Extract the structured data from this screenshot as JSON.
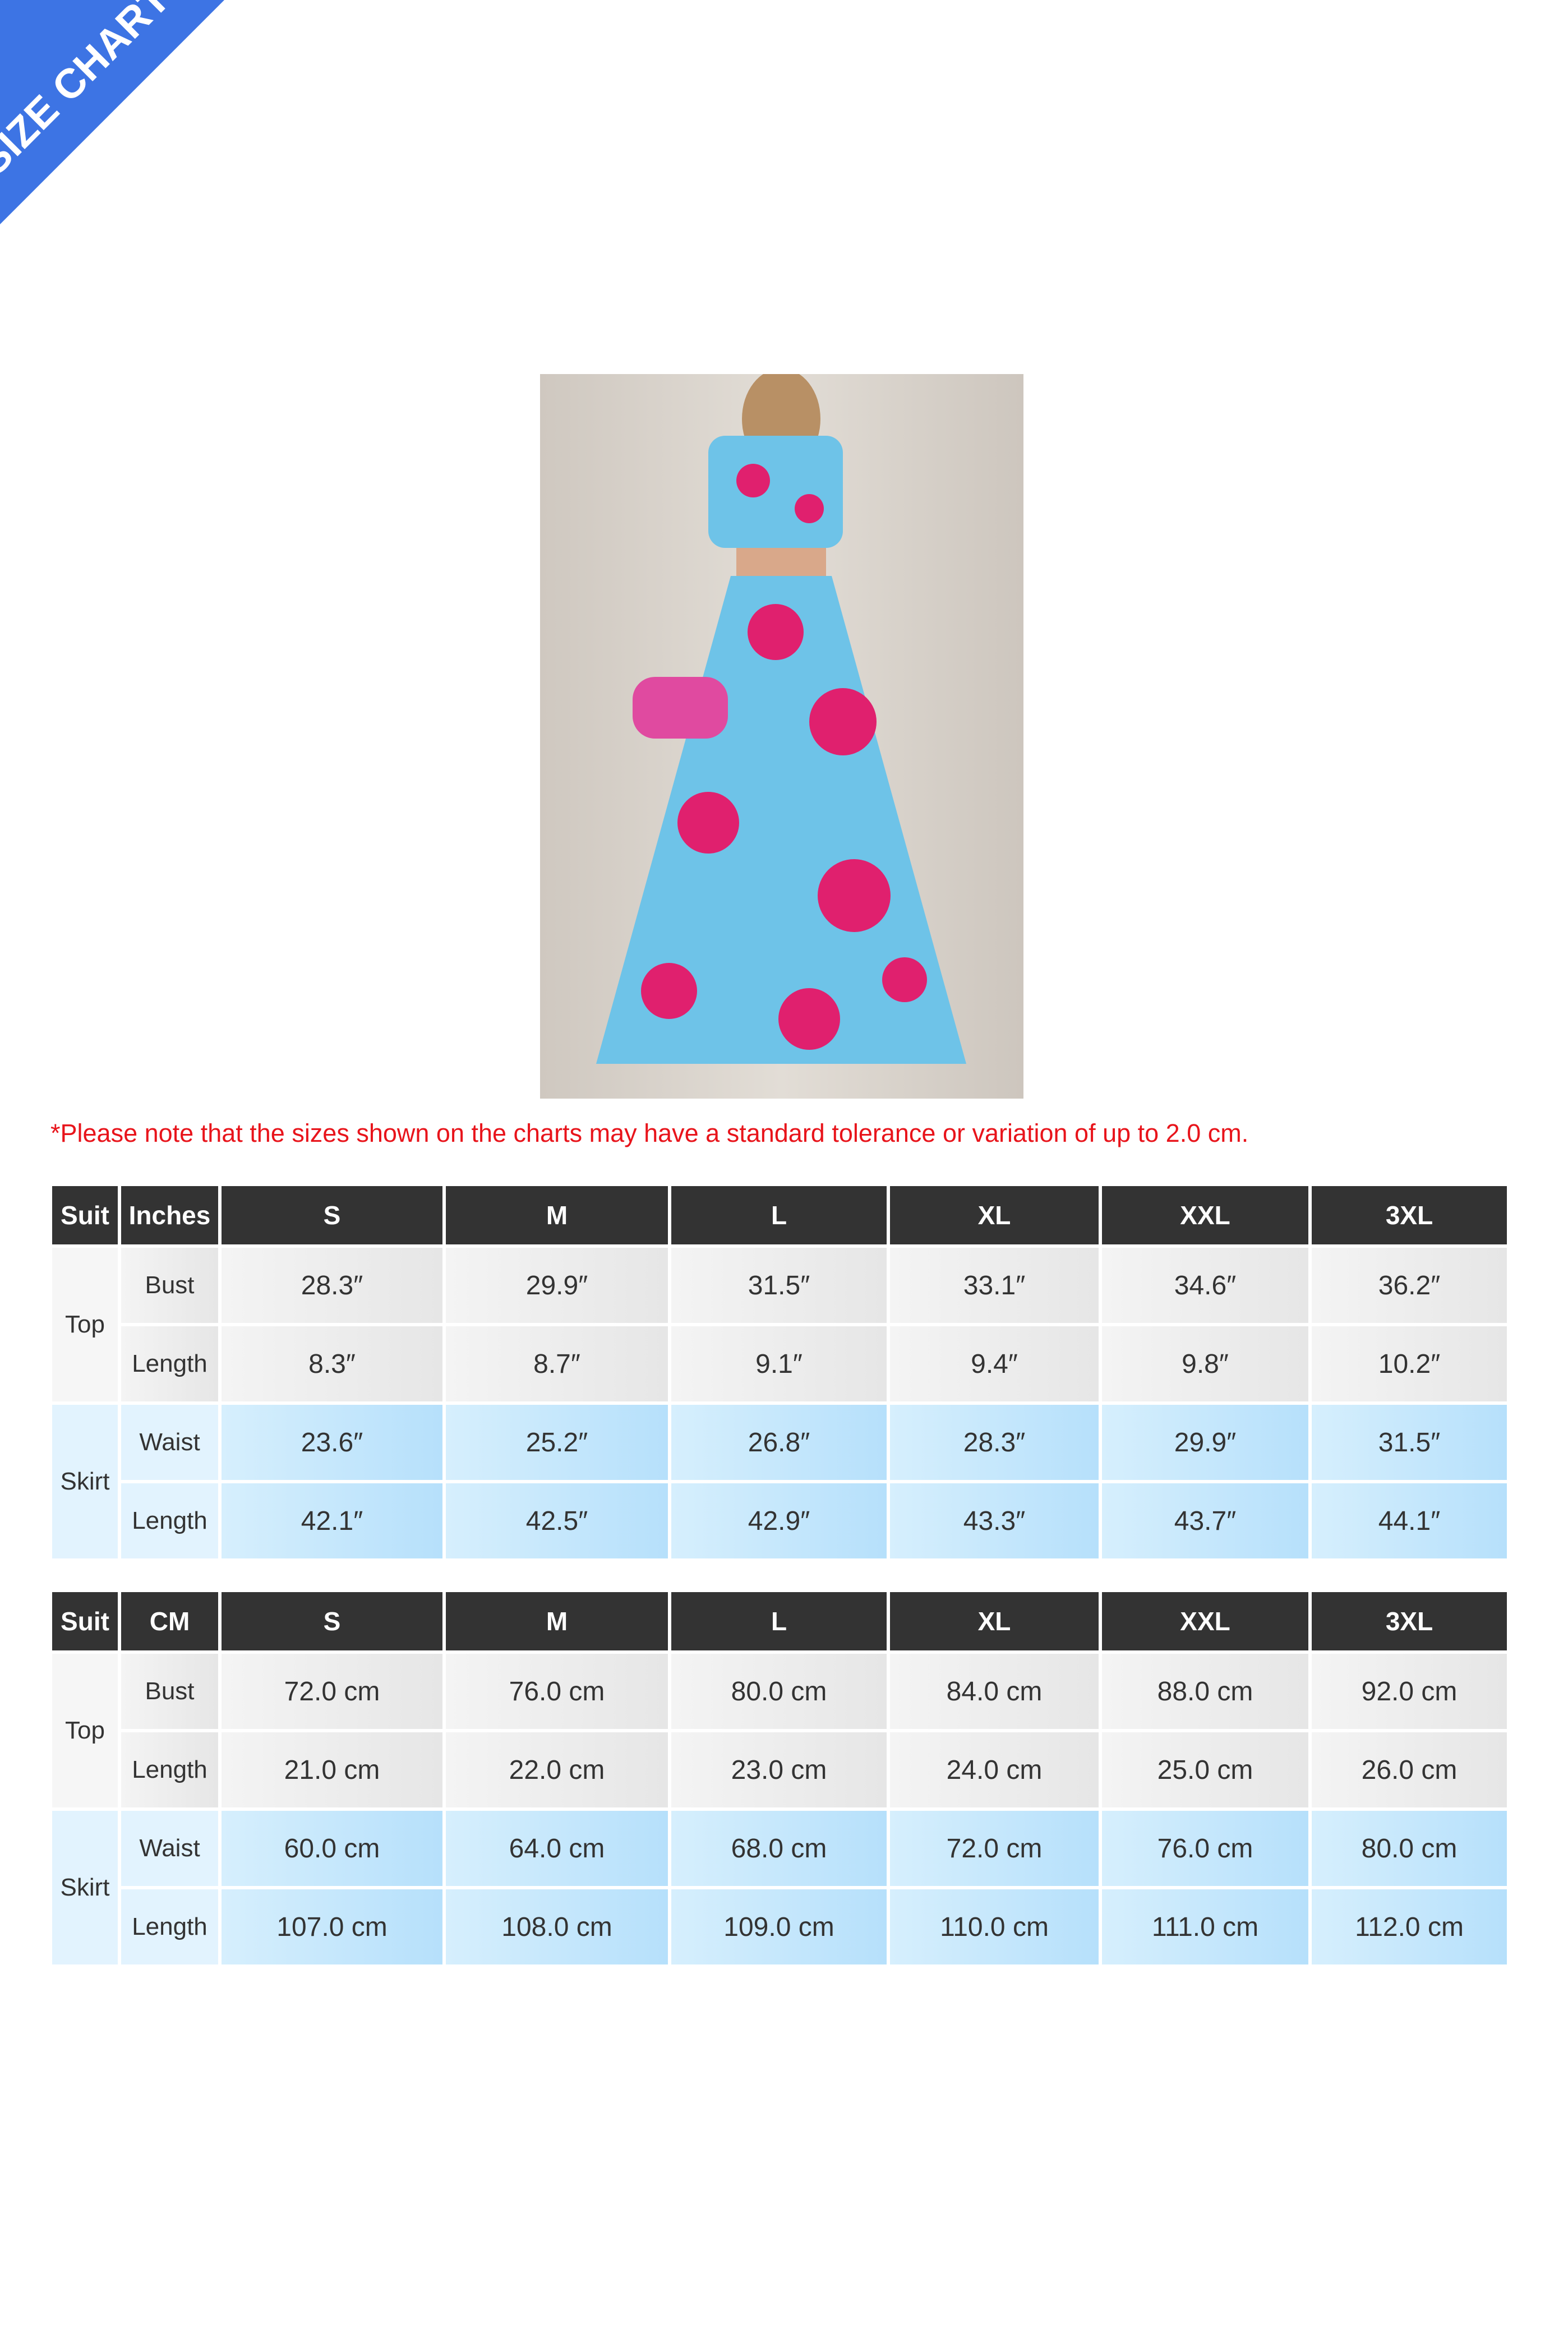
{
  "banner": {
    "label": "SIZE CHART",
    "color": "#3d74e4"
  },
  "note": "*Please note that the sizes shown on the charts may have a standard tolerance or variation of up to 2.0 cm.",
  "tables": [
    {
      "headers": [
        "Suit",
        "Inches",
        "S",
        "M",
        "L",
        "XL",
        "XXL",
        "3XL"
      ],
      "groups": [
        {
          "name": "Top",
          "rows": [
            {
              "label": "Bust",
              "values": [
                "28.3″",
                "29.9″",
                "31.5″",
                "33.1″",
                "34.6″",
                "36.2″"
              ]
            },
            {
              "label": "Length",
              "values": [
                "8.3″",
                "8.7″",
                "9.1″",
                "9.4″",
                "9.8″",
                "10.2″"
              ]
            }
          ]
        },
        {
          "name": "Skirt",
          "rows": [
            {
              "label": "Waist",
              "values": [
                "23.6″",
                "25.2″",
                "26.8″",
                "28.3″",
                "29.9″",
                "31.5″"
              ]
            },
            {
              "label": "Length",
              "values": [
                "42.1″",
                "42.5″",
                "42.9″",
                "43.3″",
                "43.7″",
                "44.1″"
              ]
            }
          ]
        }
      ]
    },
    {
      "headers": [
        "Suit",
        "CM",
        "S",
        "M",
        "L",
        "XL",
        "XXL",
        "3XL"
      ],
      "groups": [
        {
          "name": "Top",
          "rows": [
            {
              "label": "Bust",
              "values": [
                "72.0 cm",
                "76.0 cm",
                "80.0 cm",
                "84.0 cm",
                "88.0 cm",
                "92.0 cm"
              ]
            },
            {
              "label": "Length",
              "values": [
                "21.0 cm",
                "22.0 cm",
                "23.0 cm",
                "24.0 cm",
                "25.0 cm",
                "26.0 cm"
              ]
            }
          ]
        },
        {
          "name": "Skirt",
          "rows": [
            {
              "label": "Waist",
              "values": [
                "60.0 cm",
                "64.0 cm",
                "68.0 cm",
                "72.0 cm",
                "76.0 cm",
                "80.0 cm"
              ]
            },
            {
              "label": "Length",
              "values": [
                "107.0 cm",
                "108.0 cm",
                "109.0 cm",
                "110.0 cm",
                "111.0 cm",
                "112.0 cm"
              ]
            }
          ]
        }
      ]
    }
  ]
}
